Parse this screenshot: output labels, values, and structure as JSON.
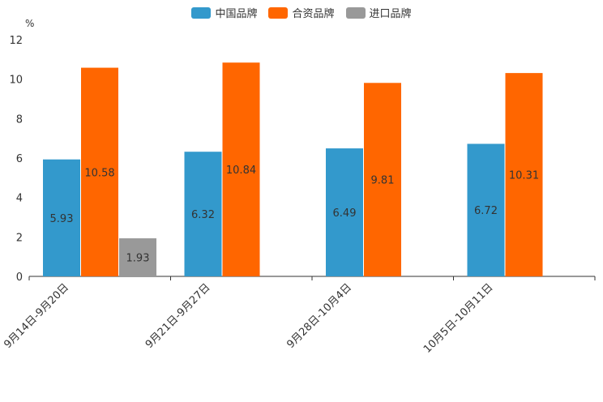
{
  "chart_data": {
    "type": "bar",
    "unit_label": "%",
    "categories": [
      "9月14日-9月20日",
      "9月21日-9月27日",
      "9月28日-10月4日",
      "10月5日-10月11日"
    ],
    "series": [
      {
        "name": "中国品牌",
        "color": "#3399cc",
        "values": [
          5.93,
          6.32,
          6.49,
          6.72
        ],
        "labels": [
          "5.93",
          "6.32",
          "6.49",
          "6.72"
        ]
      },
      {
        "name": "合资品牌",
        "color": "#ff6600",
        "values": [
          10.58,
          10.84,
          9.81,
          10.31
        ],
        "labels": [
          "10.58",
          "10.84",
          "9.81",
          "10.31"
        ]
      },
      {
        "name": "进口品牌",
        "color": "#999999",
        "values": [
          1.93,
          null,
          null,
          null
        ],
        "labels": [
          "1.93",
          "",
          "",
          ""
        ]
      }
    ],
    "ylim": [
      0,
      12
    ],
    "yticks": [
      0,
      2,
      4,
      6,
      8,
      10,
      12
    ],
    "legend_position": "top-center"
  }
}
